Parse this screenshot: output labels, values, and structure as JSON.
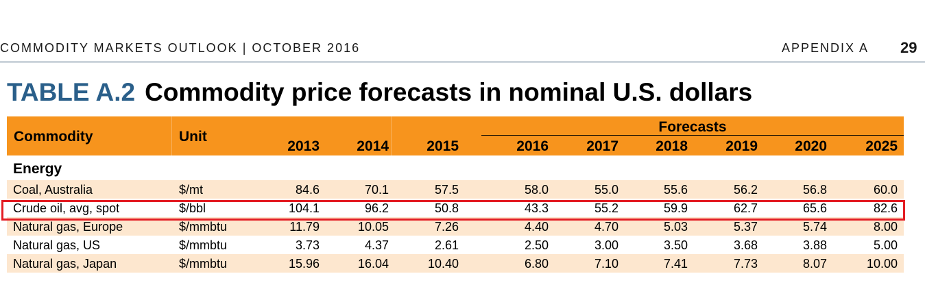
{
  "page_header": {
    "publication": "COMMODITY MARKETS OUTLOOK | OCTOBER 2016",
    "section": "APPENDIX A",
    "page_number": "29"
  },
  "title": {
    "label": "TABLE A.2",
    "text": "Commodity price forecasts in nominal U.S. dollars"
  },
  "table": {
    "col_commodity": "Commodity",
    "col_unit": "Unit",
    "forecasts_label": "Forecasts",
    "years": [
      "2013",
      "2014",
      "2015",
      "2016",
      "2017",
      "2018",
      "2019",
      "2020",
      "2025"
    ],
    "section": "Energy",
    "rows": [
      {
        "name": "Coal, Australia",
        "unit": "$/mt",
        "values": [
          "84.6",
          "70.1",
          "57.5",
          "58.0",
          "55.0",
          "55.6",
          "56.2",
          "56.8",
          "60.0"
        ]
      },
      {
        "name": "Crude oil, avg, spot",
        "unit": "$/bbl",
        "values": [
          "104.1",
          "96.2",
          "50.8",
          "43.3",
          "55.2",
          "59.9",
          "62.7",
          "65.6",
          "82.6"
        ]
      },
      {
        "name": "Natural gas, Europe",
        "unit": "$/mmbtu",
        "values": [
          "11.79",
          "10.05",
          "7.26",
          "4.40",
          "4.70",
          "5.03",
          "5.37",
          "5.74",
          "8.00"
        ]
      },
      {
        "name": "Natural gas, US",
        "unit": "$/mmbtu",
        "values": [
          "3.73",
          "4.37",
          "2.61",
          "2.50",
          "3.00",
          "3.50",
          "3.68",
          "3.88",
          "5.00"
        ]
      },
      {
        "name": "Natural gas, Japan",
        "unit": "$/mmbtu",
        "values": [
          "15.96",
          "16.04",
          "10.40",
          "6.80",
          "7.10",
          "7.41",
          "7.73",
          "8.07",
          "10.00"
        ]
      }
    ],
    "highlight_color": "#e31c23",
    "header_color": "#f7941d",
    "shade_color": "#fde7cf"
  }
}
